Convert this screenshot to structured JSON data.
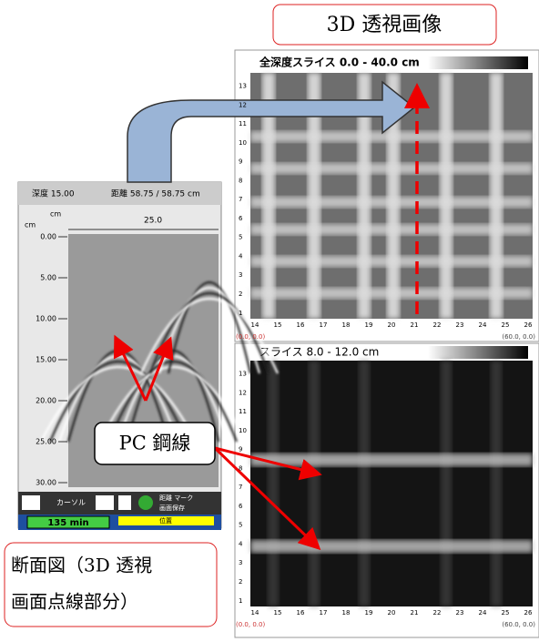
{
  "title_callout": "3D 透視画像",
  "top_view": {
    "title": "全深度スライス 0.0 - 40.0 cm",
    "y_labels": [
      "1",
      "2",
      "3",
      "4",
      "5",
      "6",
      "7",
      "8",
      "9",
      "10",
      "11",
      "12",
      "13"
    ],
    "x_labels": [
      "14",
      "15",
      "16",
      "17",
      "18",
      "19",
      "20",
      "21",
      "22",
      "23",
      "24",
      "25",
      "26"
    ],
    "origin": "(0.0, 0.0)",
    "end": "(60.0, 0.0)"
  },
  "bottom_view": {
    "title": "スライス 8.0 - 12.0 cm",
    "y_labels": [
      "1",
      "2",
      "3",
      "4",
      "5",
      "6",
      "7",
      "8",
      "9",
      "10",
      "11",
      "12",
      "13"
    ],
    "x_labels": [
      "14",
      "15",
      "16",
      "17",
      "18",
      "19",
      "20",
      "21",
      "22",
      "23",
      "24",
      "25",
      "26"
    ],
    "origin": "(0.0, 0.0)",
    "end": "(60.0, 0.0)"
  },
  "section_view": {
    "depth": "深度 15.00",
    "distance": "距離 58.75 / 58.75 cm",
    "unit_top": "cm",
    "unit_left": "cm",
    "ruler_label": "25.0",
    "depth_labels": [
      "0.00",
      "5.00",
      "10.00",
      "15.00",
      "20.00",
      "25.00",
      "30.00"
    ],
    "buttons": {
      "cursor": "カーソル",
      "mark": "距離 マーク",
      "save": "画面保存",
      "time": "135 min",
      "position": "位置"
    }
  },
  "pc_callout": "PC 鋼線",
  "section_callout": [
    "断面図（3D 透視",
    "画面点線部分）"
  ]
}
